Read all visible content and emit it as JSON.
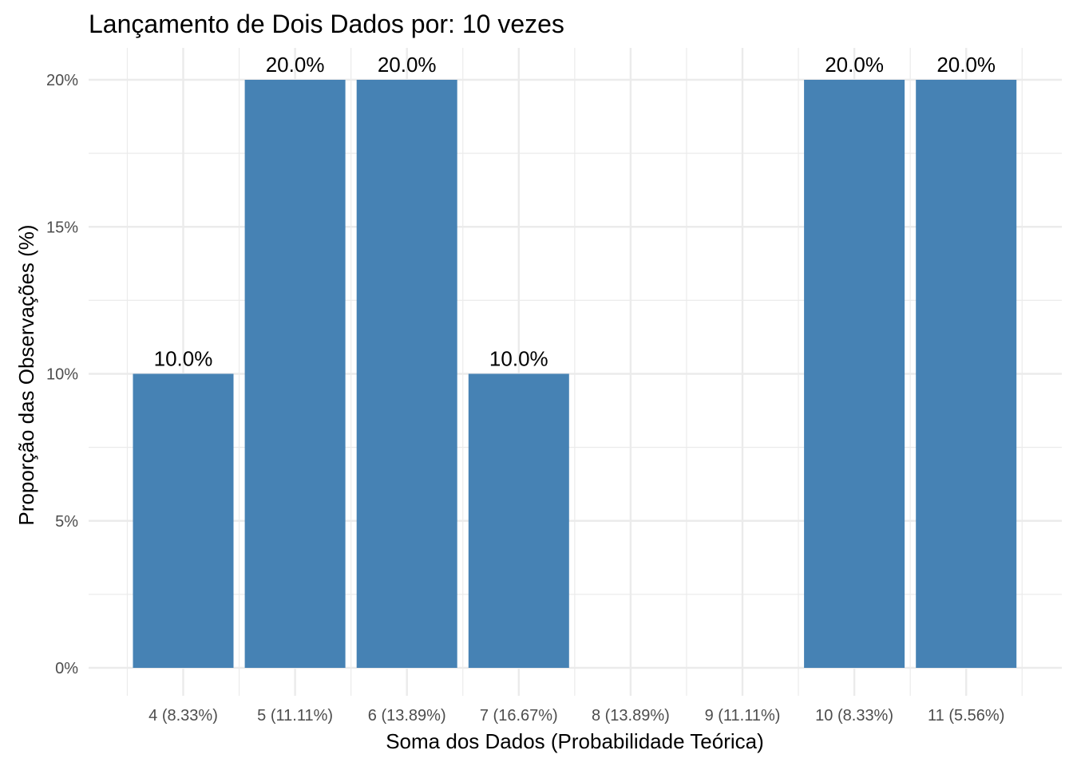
{
  "chart_data": {
    "type": "bar",
    "title": "Lançamento de Dois Dados por: 10 vezes",
    "xlabel": "Soma dos Dados (Probabilidade Teórica)",
    "ylabel": "Proporção das Observações (%)",
    "categories": [
      "4 (8.33%)",
      "5 (11.11%)",
      "6 (13.89%)",
      "7 (16.67%)",
      "8 (13.89%)",
      "9 (11.11%)",
      "10 (8.33%)",
      "11 (5.56%)"
    ],
    "values": [
      0.1,
      0.2,
      0.2,
      0.1,
      0,
      0,
      0.2,
      0.2
    ],
    "data_labels": [
      "10.0%",
      "20.0%",
      "20.0%",
      "10.0%",
      "",
      "",
      "20.0%",
      "20.0%"
    ],
    "ylim": [
      0,
      0.2
    ],
    "yticks": [
      0,
      0.05,
      0.1,
      0.15,
      0.2
    ],
    "ytick_labels": [
      "0%",
      "5%",
      "10%",
      "15%",
      "20%"
    ],
    "bar_color": "#4682B4",
    "grid": true,
    "grid_color": "#EBEBEB",
    "legend": "none"
  }
}
